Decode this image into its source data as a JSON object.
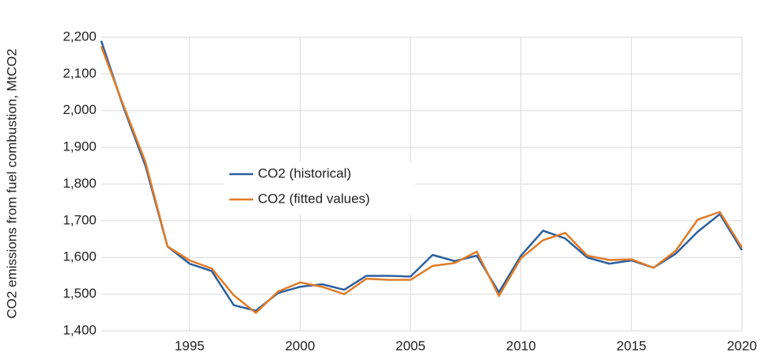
{
  "chart_data": {
    "type": "line",
    "y_label": "CO2 emissions from fuel combustion, MtCO2",
    "x": [
      1991,
      1992,
      1993,
      1994,
      1995,
      1996,
      1997,
      1998,
      1999,
      2000,
      2001,
      2002,
      2003,
      2004,
      2005,
      2006,
      2007,
      2008,
      2009,
      2010,
      2011,
      2012,
      2013,
      2014,
      2015,
      2016,
      2017,
      2018,
      2019,
      2020
    ],
    "series": [
      {
        "name": "CO2 (historical)",
        "color": "#2e5f9e",
        "values": [
          2190,
          2010,
          1850,
          1630,
          1583,
          1563,
          1470,
          1455,
          1503,
          1520,
          1527,
          1512,
          1550,
          1550,
          1548,
          1607,
          1590,
          1605,
          1505,
          1605,
          1673,
          1652,
          1600,
          1583,
          1592,
          1572,
          1610,
          1670,
          1718,
          1620
        ]
      },
      {
        "name": "CO2 (fitted values)",
        "color": "#e07b28",
        "values": [
          2175,
          2015,
          1860,
          1630,
          1592,
          1570,
          1497,
          1449,
          1507,
          1532,
          1520,
          1500,
          1542,
          1539,
          1539,
          1577,
          1585,
          1616,
          1495,
          1598,
          1647,
          1667,
          1605,
          1593,
          1595,
          1572,
          1618,
          1703,
          1724,
          1627
        ]
      }
    ],
    "xlim": [
      1991,
      2020
    ],
    "xticks": [
      1995,
      2000,
      2005,
      2010,
      2015,
      2020
    ],
    "ylim": [
      1400,
      2200
    ],
    "yticks": [
      {
        "value": 1400,
        "label": "1,400"
      },
      {
        "value": 1500,
        "label": "1,500"
      },
      {
        "value": 1600,
        "label": "1,600"
      },
      {
        "value": 1700,
        "label": "1,700"
      },
      {
        "value": 1800,
        "label": "1,800"
      },
      {
        "value": 1900,
        "label": "1,900"
      },
      {
        "value": 2000,
        "label": "2,000"
      },
      {
        "value": 2100,
        "label": "2,100"
      },
      {
        "value": 2200,
        "label": "2,200"
      }
    ],
    "grid": true
  }
}
